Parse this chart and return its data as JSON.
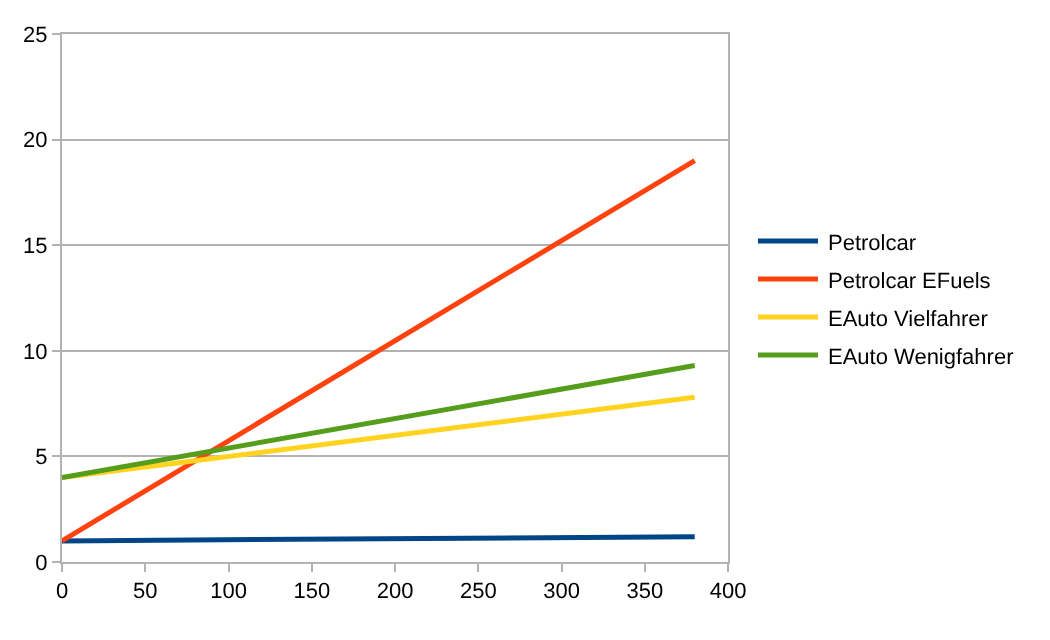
{
  "chart_data": {
    "type": "line",
    "x": [
      0,
      380
    ],
    "series": [
      {
        "name": "Petrolcar",
        "color": "#004586",
        "values": [
          1,
          1.2
        ]
      },
      {
        "name": "Petrolcar EFuels",
        "color": "#ff420e",
        "values": [
          1,
          19
        ]
      },
      {
        "name": "EAuto Vielfahrer",
        "color": "#ffd320",
        "values": [
          4,
          7.8
        ]
      },
      {
        "name": "EAuto Wenigfahrer",
        "color": "#579d1c",
        "values": [
          4,
          9.3
        ]
      }
    ],
    "xlim": [
      0,
      400
    ],
    "xticks": [
      0,
      50,
      100,
      150,
      200,
      250,
      300,
      350,
      400
    ],
    "ylim": [
      0,
      25
    ],
    "yticks": [
      0,
      5,
      10,
      15,
      20,
      25
    ],
    "grid": "y",
    "legend": "right",
    "marker": "none",
    "line_style": "solid"
  }
}
